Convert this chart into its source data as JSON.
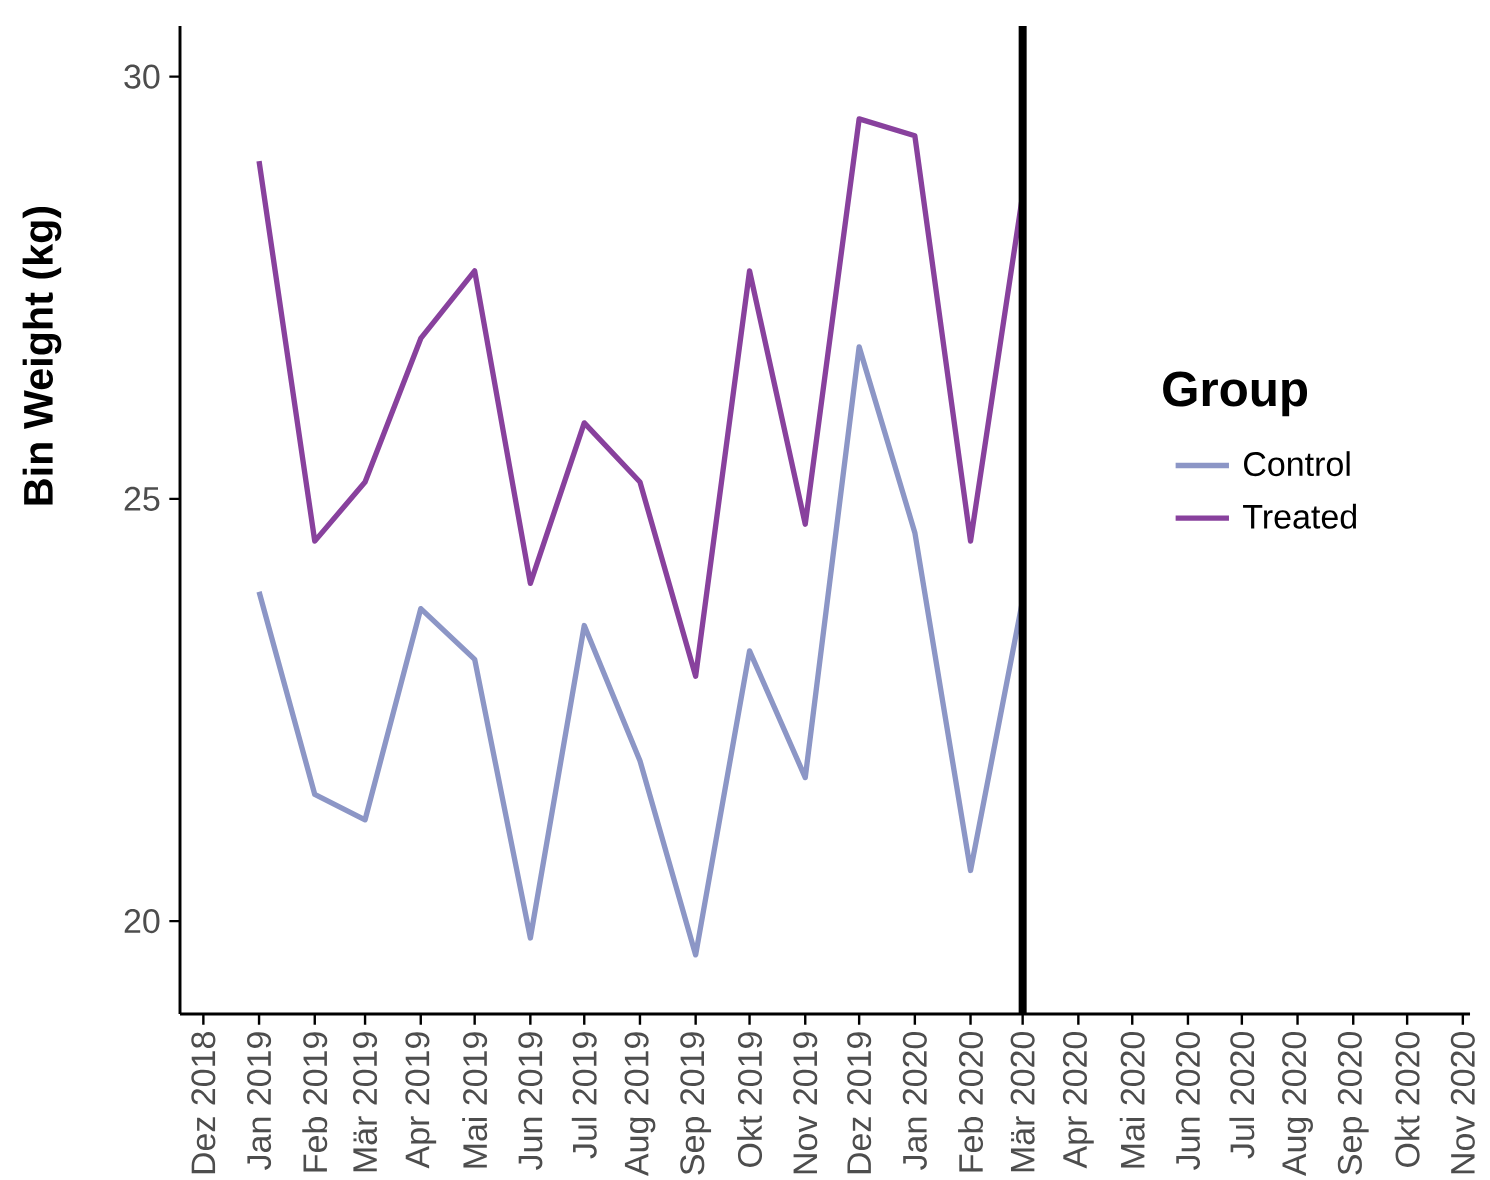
{
  "chart_data": {
    "type": "line",
    "ylabel": "Bin Weight (kg)",
    "legend_title": "Group",
    "legend": "right",
    "marker": "none",
    "line_style": "solid",
    "x": [
      "2019-01",
      "2019-02",
      "2019-03",
      "2019-04",
      "2019-05",
      "2019-06",
      "2019-07",
      "2019-08",
      "2019-09",
      "2019-10",
      "2019-11",
      "2019-12",
      "2020-01",
      "2020-02",
      "2020-03"
    ],
    "series": [
      {
        "name": "Control",
        "color": "#8c96c6",
        "values": [
          23.9,
          21.5,
          21.2,
          23.7,
          23.1,
          19.8,
          23.5,
          21.9,
          19.6,
          23.2,
          21.7,
          26.8,
          24.6,
          20.6,
          23.8
        ]
      },
      {
        "name": "Treated",
        "color": "#88419d",
        "values": [
          29.0,
          24.5,
          25.2,
          26.9,
          27.7,
          24.0,
          25.9,
          25.2,
          22.9,
          27.7,
          24.7,
          29.5,
          29.3,
          24.5,
          28.6
        ]
      }
    ],
    "xlim": [
      "2018-11-18",
      "2020-11-05"
    ],
    "xticks": [
      {
        "value": "2018-12",
        "label": "Dez 2018"
      },
      {
        "value": "2019-01",
        "label": "Jan 2019"
      },
      {
        "value": "2019-02",
        "label": "Feb 2019"
      },
      {
        "value": "2019-03",
        "label": "Mär 2019"
      },
      {
        "value": "2019-04",
        "label": "Apr 2019"
      },
      {
        "value": "2019-05",
        "label": "Mai 2019"
      },
      {
        "value": "2019-06",
        "label": "Jun 2019"
      },
      {
        "value": "2019-07",
        "label": "Jul 2019"
      },
      {
        "value": "2019-08",
        "label": "Aug 2019"
      },
      {
        "value": "2019-09",
        "label": "Sep 2019"
      },
      {
        "value": "2019-10",
        "label": "Okt 2019"
      },
      {
        "value": "2019-11",
        "label": "Nov 2019"
      },
      {
        "value": "2019-12",
        "label": "Dez 2019"
      },
      {
        "value": "2020-01",
        "label": "Jan 2020"
      },
      {
        "value": "2020-02",
        "label": "Feb 2020"
      },
      {
        "value": "2020-03",
        "label": "Mär 2020"
      },
      {
        "value": "2020-04",
        "label": "Apr 2020"
      },
      {
        "value": "2020-05",
        "label": "Mai 2020"
      },
      {
        "value": "2020-06",
        "label": "Jun 2020"
      },
      {
        "value": "2020-07",
        "label": "Jul 2020"
      },
      {
        "value": "2020-08",
        "label": "Aug 2020"
      },
      {
        "value": "2020-09",
        "label": "Sep 2020"
      },
      {
        "value": "2020-10",
        "label": "Okt 2020"
      },
      {
        "value": "2020-11",
        "label": "Nov 2020"
      }
    ],
    "ylim": [
      18.9,
      30.6
    ],
    "yticks": [
      20,
      25,
      30
    ],
    "ref_lines": [
      {
        "axis": "x",
        "value": "2020-03",
        "color": "#000000"
      }
    ]
  }
}
